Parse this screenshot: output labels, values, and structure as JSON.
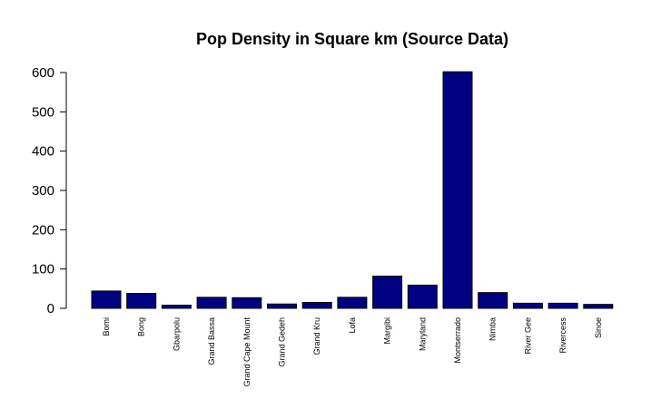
{
  "chart_data": {
    "type": "bar",
    "title": "Pop Density in Square km (Source Data)",
    "xlabel": "",
    "ylabel": "",
    "categories": [
      "Bomi",
      "Bong",
      "Gbarpolu",
      "Grand Bassa",
      "Grand Cape Mount",
      "Grand Gedeh",
      "Grand Kru",
      "Lofa",
      "Margibi",
      "Maryland",
      "Montserrado",
      "Nimba",
      "River Gee",
      "Rivercess",
      "Sinoe"
    ],
    "values": [
      44,
      38,
      8,
      28,
      27,
      11,
      15,
      28,
      82,
      59,
      602,
      40,
      13,
      13,
      10
    ],
    "ylim": [
      0,
      600
    ],
    "yticks": [
      0,
      100,
      200,
      300,
      400,
      500,
      600
    ],
    "grid": false,
    "colors": {
      "bar_fill": "#000080",
      "bar_stroke": "#000000",
      "axis": "#000000"
    }
  }
}
